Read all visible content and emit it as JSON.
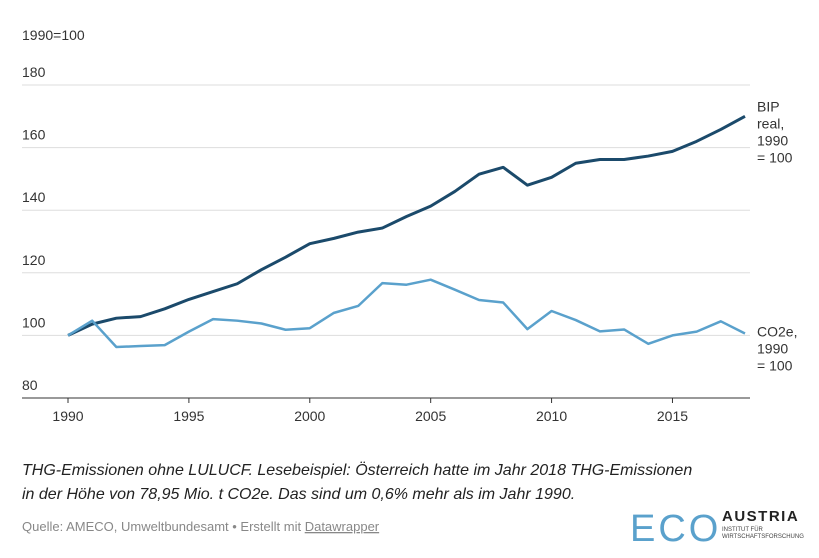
{
  "chart_data": {
    "type": "line",
    "unit_label": "1990=100",
    "x": [
      1990,
      1991,
      1992,
      1993,
      1994,
      1995,
      1996,
      1997,
      1998,
      1999,
      2000,
      2001,
      2002,
      2003,
      2004,
      2005,
      2006,
      2007,
      2008,
      2009,
      2010,
      2011,
      2012,
      2013,
      2014,
      2015,
      2016,
      2017,
      2018
    ],
    "series": [
      {
        "label_lines": [
          "BIP",
          "real,",
          "1990",
          "= 100"
        ],
        "color": "#1b4a6b",
        "values": [
          100,
          103.6,
          105.5,
          106,
          108.5,
          111.5,
          114,
          116.5,
          121,
          125,
          129.3,
          131,
          133,
          134.3,
          138,
          141.3,
          146,
          151.5,
          153.7,
          148,
          150.5,
          155,
          156.2,
          156.2,
          157.3,
          158.8,
          162,
          165.8,
          170
        ]
      },
      {
        "label_lines": [
          "CO2e,",
          "1990",
          "= 100"
        ],
        "color": "#5aa1cc",
        "values": [
          100,
          104.7,
          96.3,
          96.6,
          96.9,
          101.2,
          105.2,
          104.7,
          103.8,
          101.8,
          102.3,
          107.2,
          109.4,
          116.7,
          116.2,
          117.8,
          114.6,
          111.3,
          110.5,
          102,
          107.8,
          104.9,
          101.3,
          101.9,
          97.3,
          100,
          101.2,
          104.5,
          100.6
        ]
      }
    ],
    "xlim": [
      1990,
      2018
    ],
    "xticks": [
      1990,
      1995,
      2000,
      2005,
      2010,
      2015
    ],
    "ylim": [
      80,
      180
    ],
    "yticks": [
      80,
      100,
      120,
      140,
      160,
      180
    ],
    "grid": true,
    "caption_lines": [
      "THG-Emissionen ohne LULUCF. Lesebeispiel: Österreich hatte im Jahr 2018 THG-Emissionen",
      "in der Höhe von 78,95 Mio. t CO2e. Das sind um 0,6% mehr als im Jahr 1990."
    ],
    "source": "Quelle: AMECO, Umweltbundesamt • Erstellt mit ",
    "source_link": "Datawrapper",
    "logo": {
      "mark": "ECO",
      "name": "AUSTRIA",
      "sub1": "INSTITUT FÜR",
      "sub2": "WIRTSCHAFTSFORSCHUNG"
    }
  }
}
